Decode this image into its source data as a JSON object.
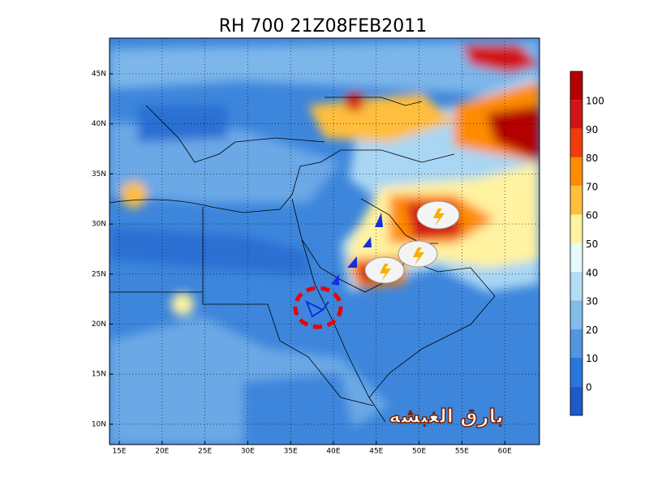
{
  "title": "RH 700 21Z08FEB2011",
  "longitude_labels": [
    "15E",
    "20E",
    "25E",
    "30E",
    "35E",
    "40E",
    "45E",
    "50E",
    "55E",
    "60E"
  ],
  "latitude_labels": [
    "45N",
    "40N",
    "35N",
    "30N",
    "25N",
    "20N",
    "15N",
    "10N"
  ],
  "colorbar_labels": [
    "100",
    "90",
    "80",
    "70",
    "60",
    "50",
    "40",
    "30",
    "20",
    "10",
    "0"
  ],
  "watermark": "بارق الغبشه"
}
